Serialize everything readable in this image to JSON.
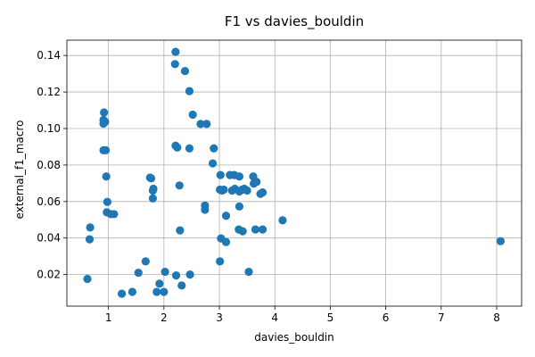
{
  "chart_data": {
    "type": "scatter",
    "title": "F1 vs davies_bouldin",
    "xlabel": "davies_bouldin",
    "ylabel": "external_f1_macro",
    "xlim": [
      0.25,
      8.45
    ],
    "ylim": [
      0.0027,
      0.1484
    ],
    "x_ticks": [
      1,
      2,
      3,
      4,
      5,
      6,
      7,
      8
    ],
    "x_tick_labels": [
      "1",
      "2",
      "3",
      "4",
      "5",
      "6",
      "7",
      "8"
    ],
    "y_ticks": [
      0.02,
      0.04,
      0.06,
      0.08,
      0.1,
      0.12,
      0.14
    ],
    "y_tick_labels": [
      "0.02",
      "0.04",
      "0.06",
      "0.08",
      "0.10",
      "0.12",
      "0.14"
    ],
    "grid": true,
    "marker_color": "#1f77b4",
    "points": [
      {
        "x": 0.62,
        "y": 0.0176
      },
      {
        "x": 0.66,
        "y": 0.0393
      },
      {
        "x": 0.67,
        "y": 0.0458
      },
      {
        "x": 0.92,
        "y": 0.1088
      },
      {
        "x": 0.91,
        "y": 0.1047
      },
      {
        "x": 0.94,
        "y": 0.1037
      },
      {
        "x": 0.91,
        "y": 0.1027
      },
      {
        "x": 0.91,
        "y": 0.0881
      },
      {
        "x": 0.95,
        "y": 0.0881
      },
      {
        "x": 0.96,
        "y": 0.0737
      },
      {
        "x": 0.98,
        "y": 0.0598
      },
      {
        "x": 0.97,
        "y": 0.0541
      },
      {
        "x": 1.04,
        "y": 0.0531
      },
      {
        "x": 1.1,
        "y": 0.0531
      },
      {
        "x": 1.24,
        "y": 0.0095
      },
      {
        "x": 1.43,
        "y": 0.0105
      },
      {
        "x": 1.54,
        "y": 0.021
      },
      {
        "x": 1.67,
        "y": 0.0272
      },
      {
        "x": 1.75,
        "y": 0.0731
      },
      {
        "x": 1.77,
        "y": 0.0727
      },
      {
        "x": 1.81,
        "y": 0.067
      },
      {
        "x": 1.8,
        "y": 0.066
      },
      {
        "x": 1.8,
        "y": 0.0617
      },
      {
        "x": 1.87,
        "y": 0.0105
      },
      {
        "x": 1.92,
        "y": 0.015
      },
      {
        "x": 2.0,
        "y": 0.0105
      },
      {
        "x": 2.02,
        "y": 0.0215
      },
      {
        "x": 2.21,
        "y": 0.142
      },
      {
        "x": 2.2,
        "y": 0.1353
      },
      {
        "x": 2.21,
        "y": 0.0906
      },
      {
        "x": 2.24,
        "y": 0.0896
      },
      {
        "x": 2.28,
        "y": 0.0688
      },
      {
        "x": 2.29,
        "y": 0.0442
      },
      {
        "x": 2.22,
        "y": 0.0195
      },
      {
        "x": 2.32,
        "y": 0.014
      },
      {
        "x": 2.47,
        "y": 0.02
      },
      {
        "x": 2.38,
        "y": 0.1315
      },
      {
        "x": 2.46,
        "y": 0.1205
      },
      {
        "x": 2.52,
        "y": 0.1076
      },
      {
        "x": 2.46,
        "y": 0.0891
      },
      {
        "x": 2.66,
        "y": 0.1025
      },
      {
        "x": 2.77,
        "y": 0.1025
      },
      {
        "x": 2.74,
        "y": 0.0578
      },
      {
        "x": 2.74,
        "y": 0.0555
      },
      {
        "x": 2.9,
        "y": 0.0891
      },
      {
        "x": 2.88,
        "y": 0.0809
      },
      {
        "x": 3.02,
        "y": 0.0745
      },
      {
        "x": 3.01,
        "y": 0.0665
      },
      {
        "x": 3.05,
        "y": 0.066
      },
      {
        "x": 3.08,
        "y": 0.0665
      },
      {
        "x": 3.03,
        "y": 0.0398
      },
      {
        "x": 3.01,
        "y": 0.0272
      },
      {
        "x": 3.12,
        "y": 0.0522
      },
      {
        "x": 3.12,
        "y": 0.0378
      },
      {
        "x": 3.19,
        "y": 0.0745
      },
      {
        "x": 3.27,
        "y": 0.0745
      },
      {
        "x": 3.23,
        "y": 0.066
      },
      {
        "x": 3.28,
        "y": 0.067
      },
      {
        "x": 3.36,
        "y": 0.0737
      },
      {
        "x": 3.36,
        "y": 0.0655
      },
      {
        "x": 3.41,
        "y": 0.0665
      },
      {
        "x": 3.45,
        "y": 0.067
      },
      {
        "x": 3.5,
        "y": 0.066
      },
      {
        "x": 3.36,
        "y": 0.0573
      },
      {
        "x": 3.35,
        "y": 0.0447
      },
      {
        "x": 3.42,
        "y": 0.0437
      },
      {
        "x": 3.53,
        "y": 0.0215
      },
      {
        "x": 3.61,
        "y": 0.0737
      },
      {
        "x": 3.62,
        "y": 0.0698
      },
      {
        "x": 3.67,
        "y": 0.0708
      },
      {
        "x": 3.74,
        "y": 0.0642
      },
      {
        "x": 3.78,
        "y": 0.065
      },
      {
        "x": 3.65,
        "y": 0.0447
      },
      {
        "x": 3.78,
        "y": 0.0447
      },
      {
        "x": 4.14,
        "y": 0.0497
      },
      {
        "x": 8.07,
        "y": 0.0383
      }
    ]
  }
}
